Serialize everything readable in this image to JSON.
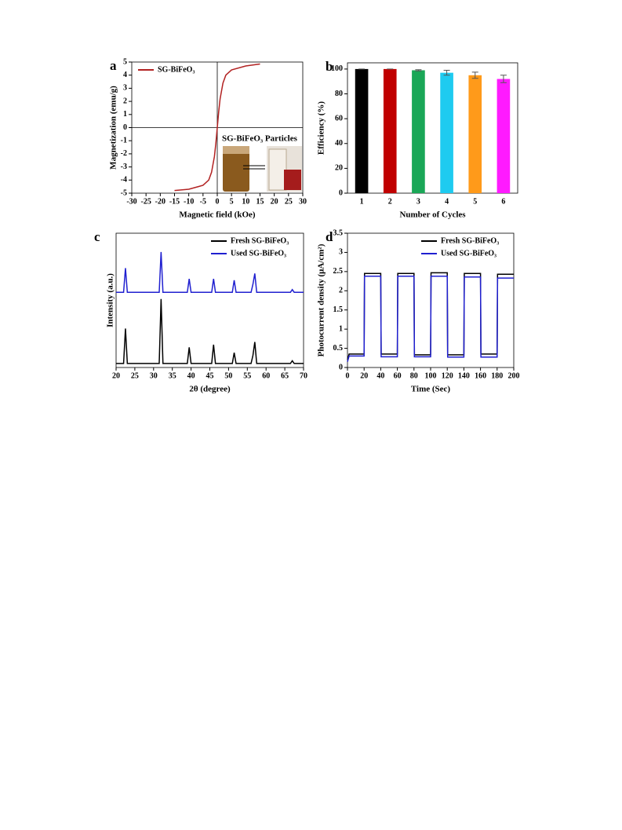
{
  "chart_data": [
    {
      "type": "line",
      "panel": "a",
      "xlabel": "Magnetic field (kOe)",
      "ylabel": "Magnetization (emu/g)",
      "xlim": [
        -30,
        30
      ],
      "xticks": [
        -30,
        -25,
        -20,
        -15,
        -10,
        -5,
        0,
        5,
        10,
        15,
        20,
        25,
        30
      ],
      "ylim": [
        -5,
        5
      ],
      "yticks": [
        -5,
        -4,
        -3,
        -2,
        -1,
        0,
        1,
        2,
        3,
        4,
        5
      ],
      "zero_lines": true,
      "legend": "upper left",
      "inset_label": "SG-BiFeO₃ Particles",
      "x": [
        -15,
        -10,
        -5,
        -3,
        -2,
        -1,
        -0.5,
        0,
        0.5,
        1,
        2,
        3,
        5,
        10,
        15
      ],
      "series": [
        {
          "name": "SG-BiFeO₃",
          "color": "#b22222",
          "values": [
            -4.8,
            -4.7,
            -4.4,
            -4.0,
            -3.4,
            -2.2,
            -1.2,
            0,
            1.2,
            2.2,
            3.4,
            4.0,
            4.4,
            4.7,
            4.85
          ]
        }
      ]
    },
    {
      "type": "bar",
      "panel": "b",
      "xlabel": "Number of Cycles",
      "ylabel": "Efficiency (%)",
      "categories": [
        "1",
        "2",
        "3",
        "4",
        "5",
        "6"
      ],
      "values": [
        100,
        100,
        99,
        97,
        95,
        92
      ],
      "errors": [
        0,
        0,
        0.5,
        2,
        2.5,
        3
      ],
      "colors": [
        "#000000",
        "#c00000",
        "#1aa757",
        "#1ecbf0",
        "#ff9a1a",
        "#ff1aff"
      ],
      "ylim": [
        0,
        105
      ],
      "yticks": [
        0,
        20,
        40,
        60,
        80,
        100
      ]
    },
    {
      "type": "line",
      "panel": "c",
      "xlabel": "2θ (degree)",
      "ylabel": "Intensity (a.u.)",
      "xlim": [
        20,
        70
      ],
      "xticks": [
        20,
        25,
        30,
        35,
        40,
        45,
        50,
        55,
        60,
        65,
        70
      ],
      "ylim": [
        0,
        100
      ],
      "legend": "upper right",
      "x": [
        20,
        22,
        22.5,
        23,
        31.5,
        32,
        32.5,
        39,
        39.5,
        40,
        45.5,
        46,
        46.5,
        51,
        51.5,
        52,
        56,
        56.5,
        57,
        57.5,
        66.5,
        67,
        67.5,
        70
      ],
      "series": [
        {
          "name": "Fresh SG-BiFeO₃",
          "color": "#000000",
          "values": [
            3,
            3,
            29,
            3,
            3,
            51,
            3,
            3,
            15,
            3,
            3,
            17,
            3,
            3,
            11,
            3,
            3,
            9,
            19,
            3,
            3,
            5,
            3,
            3
          ]
        },
        {
          "name": "Used SG-BiFeO₃",
          "color": "#2020d0",
          "values": [
            56,
            56,
            74,
            56,
            56,
            86,
            56,
            56,
            66,
            56,
            56,
            66,
            56,
            56,
            65,
            56,
            56,
            62,
            70,
            56,
            56,
            58,
            56,
            56
          ]
        }
      ]
    },
    {
      "type": "line",
      "panel": "d",
      "xlabel": "Time (Sec)",
      "ylabel": "Photocurrent density (μA/cm²)",
      "xlim": [
        0,
        200
      ],
      "xticks": [
        0,
        20,
        40,
        60,
        80,
        100,
        120,
        140,
        160,
        180,
        200
      ],
      "ylim": [
        0,
        3.5
      ],
      "yticks": [
        0,
        0.5,
        1,
        1.5,
        2,
        2.5,
        3,
        3.5
      ],
      "legend": "upper right",
      "x": [
        0,
        2,
        20,
        20.5,
        40,
        40.5,
        60,
        60.5,
        80,
        80.5,
        100,
        100.5,
        120,
        120.5,
        140,
        140.5,
        160,
        160.5,
        180,
        180.5,
        200
      ],
      "series": [
        {
          "name": "Fresh SG-BiFeO₃",
          "color": "#000000",
          "values": [
            0.2,
            0.35,
            0.35,
            2.45,
            2.45,
            0.35,
            0.35,
            2.45,
            2.45,
            0.33,
            0.33,
            2.47,
            2.47,
            0.33,
            0.33,
            2.45,
            2.45,
            0.35,
            0.35,
            2.43,
            2.43
          ]
        },
        {
          "name": "Used SG-BiFeO₃",
          "color": "#2020d0",
          "values": [
            0.15,
            0.3,
            0.3,
            2.38,
            2.38,
            0.28,
            0.28,
            2.38,
            2.38,
            0.28,
            0.28,
            2.38,
            2.38,
            0.27,
            0.27,
            2.36,
            2.36,
            0.27,
            0.27,
            2.33,
            2.33
          ]
        }
      ]
    }
  ]
}
